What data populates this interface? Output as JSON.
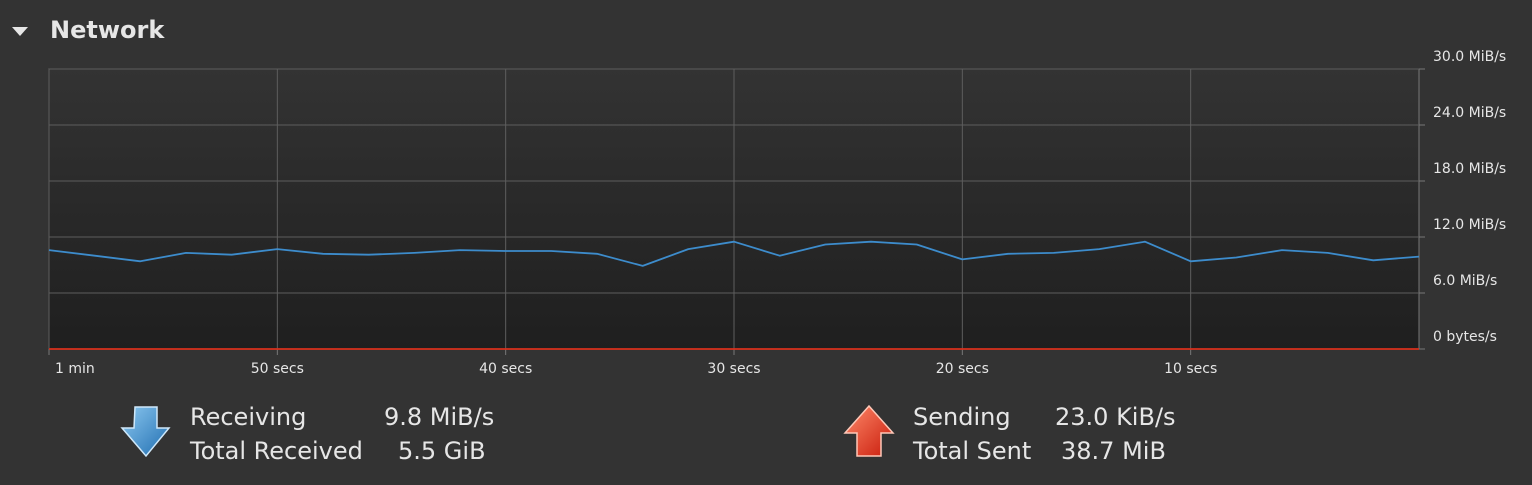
{
  "section_title": "Network",
  "chart_data": {
    "type": "line",
    "x": [
      60,
      58,
      56,
      54,
      52,
      50,
      48,
      46,
      44,
      42,
      40,
      38,
      36,
      34,
      32,
      30,
      28,
      26,
      24,
      22,
      20,
      18,
      16,
      14,
      12,
      10,
      8,
      6,
      4,
      2,
      0
    ],
    "series": [
      {
        "name": "Receiving",
        "color": "#3d8ccc",
        "values": [
          10.6,
          10.0,
          9.4,
          10.3,
          10.1,
          10.7,
          10.2,
          10.1,
          10.3,
          10.6,
          10.5,
          10.5,
          10.2,
          8.9,
          10.7,
          11.5,
          10.0,
          11.2,
          11.5,
          11.2,
          9.6,
          10.2,
          10.3,
          10.7,
          11.5,
          9.4,
          9.8,
          10.6,
          10.3,
          9.5,
          9.9
        ]
      },
      {
        "name": "Sending",
        "color": "#d9301c",
        "values": [
          0,
          0,
          0,
          0,
          0,
          0,
          0,
          0,
          0,
          0,
          0,
          0,
          0,
          0,
          0,
          0,
          0,
          0,
          0,
          0,
          0,
          0,
          0,
          0,
          0,
          0,
          0,
          0,
          0,
          0,
          0
        ]
      }
    ],
    "xlim": [
      60,
      0
    ],
    "xticks": [
      {
        "value": 60,
        "label": "1 min"
      },
      {
        "value": 50,
        "label": "50 secs"
      },
      {
        "value": 40,
        "label": "40 secs"
      },
      {
        "value": 30,
        "label": "30 secs"
      },
      {
        "value": 20,
        "label": "20 secs"
      },
      {
        "value": 10,
        "label": "10 secs"
      }
    ],
    "ylim": [
      0,
      30
    ],
    "yticks": [
      {
        "value": 0,
        "label": "0 bytes/s"
      },
      {
        "value": 6,
        "label": "6.0 MiB/s"
      },
      {
        "value": 12,
        "label": "12.0 MiB/s"
      },
      {
        "value": 18,
        "label": "18.0 MiB/s"
      },
      {
        "value": 24,
        "label": "24.0 MiB/s"
      },
      {
        "value": 30,
        "label": "30.0 MiB/s"
      }
    ],
    "grid": true
  },
  "stats": {
    "receiving_rate": "9.8 MiB/s",
    "total_received_label": "Total Received",
    "total_received": "5.5 GiB",
    "sending_rate": "23.0 KiB/s",
    "total_sent_label": "Total Sent",
    "total_sent": "38.7 MiB"
  }
}
